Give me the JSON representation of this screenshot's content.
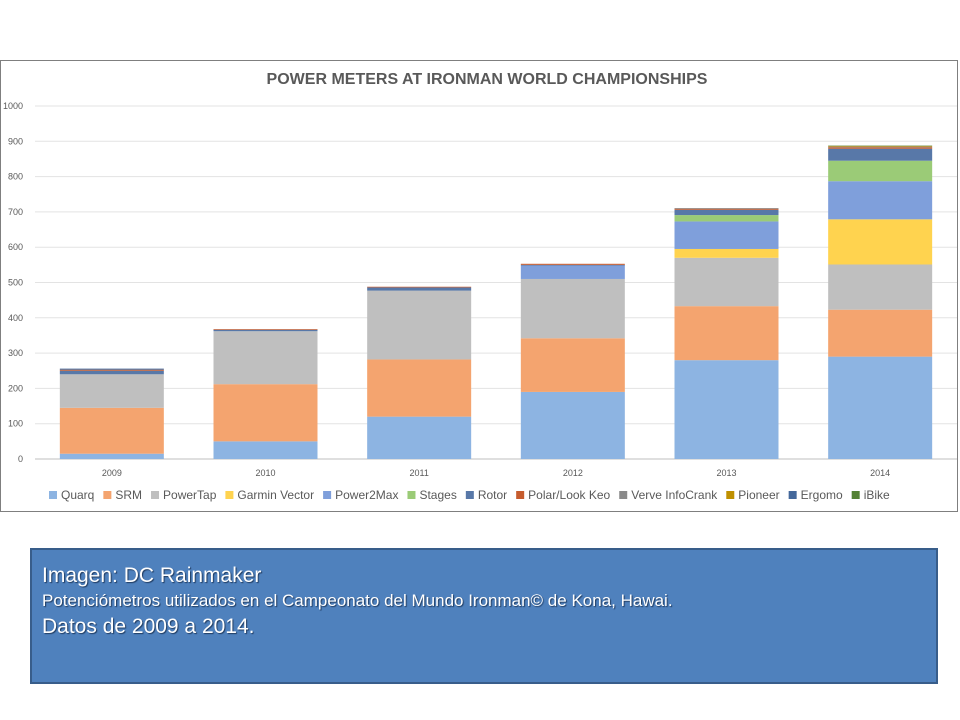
{
  "chart_data": {
    "type": "bar",
    "stacked": true,
    "title": "POWER METERS AT IRONMAN WORLD CHAMPIONSHIPS",
    "xlabel": "",
    "ylabel": "",
    "ylim": [
      0,
      1000
    ],
    "yticks": [
      "0",
      "100",
      "200",
      "300",
      "400",
      "500",
      "600",
      "700",
      "800",
      "900",
      "1000"
    ],
    "grid": true,
    "legend_position": "bottom",
    "categories": [
      "2009",
      "2010",
      "2011",
      "2012",
      "2013",
      "2014"
    ],
    "series": [
      {
        "name": "Quarq",
        "color": "#8db4e2",
        "values": [
          15,
          50,
          120,
          190,
          280,
          290
        ]
      },
      {
        "name": "SRM",
        "color": "#f4a46f",
        "values": [
          130,
          162,
          162,
          152,
          153,
          133
        ]
      },
      {
        "name": "PowerTap",
        "color": "#bfbfbf",
        "values": [
          95,
          150,
          195,
          168,
          137,
          128
        ]
      },
      {
        "name": "Garmin Vector",
        "color": "#ffd34f",
        "values": [
          0,
          0,
          0,
          0,
          25,
          128
        ]
      },
      {
        "name": "Power2Max",
        "color": "#7f9fdb",
        "values": [
          0,
          0,
          0,
          38,
          78,
          108
        ]
      },
      {
        "name": "Stages",
        "color": "#9bcb77",
        "values": [
          0,
          0,
          0,
          0,
          18,
          58
        ]
      },
      {
        "name": "Rotor",
        "color": "#5878a8",
        "values": [
          10,
          4,
          9,
          2,
          15,
          34
        ]
      },
      {
        "name": "Polar/Look Keo",
        "color": "#c65c2e",
        "values": [
          3,
          2,
          2,
          3,
          3,
          4
        ]
      },
      {
        "name": "Verve InfoCrank",
        "color": "#8a8a8a",
        "values": [
          0,
          0,
          0,
          0,
          2,
          2
        ]
      },
      {
        "name": "Pioneer",
        "color": "#bf9000",
        "values": [
          0,
          0,
          0,
          0,
          0,
          2
        ]
      },
      {
        "name": "Ergomo",
        "color": "#44689b",
        "values": [
          3,
          0,
          0,
          0,
          0,
          0
        ]
      },
      {
        "name": "iBike",
        "color": "#548235",
        "values": [
          0,
          0,
          0,
          0,
          0,
          1
        ]
      }
    ]
  },
  "caption": {
    "line1": "Imagen: DC Rainmaker",
    "line2": "Potenciómetros utilizados en el Campeonato del Mundo Ironman© de Kona, Hawai.",
    "line3": "Datos de 2009 a 2014."
  }
}
